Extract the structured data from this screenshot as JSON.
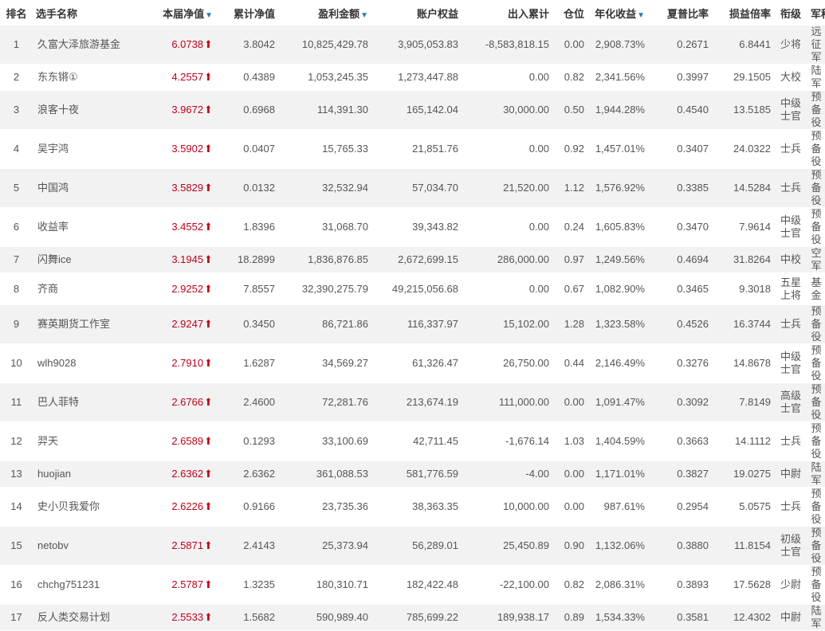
{
  "columns": [
    "排名",
    "选手名称",
    "本届净值",
    "累计净值",
    "盈利金额",
    "账户权益",
    "出入累计",
    "仓位",
    "年化收益",
    "夏普比率",
    "损益倍率",
    "衔级",
    "军种"
  ],
  "sort_icon": "triangle-down-icon",
  "up_icon": "arrow-up-icon",
  "up_color": "#c0001a",
  "rows": [
    {
      "rank": "1",
      "name": "久富大泽旅游基金",
      "nav": "6.0738",
      "cum": "3.8042",
      "profit": "10,825,429.78",
      "equity": "3,905,053.83",
      "flow": "-8,583,818.15",
      "pos": "0.00",
      "annual": "2,908.73%",
      "sharpe": "0.2671",
      "pl": "6.8441",
      "grade": "少将",
      "branch": "远征军",
      "h": 40
    },
    {
      "rank": "2",
      "name": "东东锵①",
      "nav": "4.2557",
      "cum": "0.4389",
      "profit": "1,053,245.35",
      "equity": "1,273,447.88",
      "flow": "0.00",
      "pos": "0.82",
      "annual": "2,341.56%",
      "sharpe": "0.3997",
      "pl": "29.1505",
      "grade": "大校",
      "branch": "陆军",
      "h": 28
    },
    {
      "rank": "3",
      "name": "浪客十夜",
      "nav": "3.9672",
      "cum": "0.6968",
      "profit": "114,391.30",
      "equity": "165,142.04",
      "flow": "30,000.00",
      "pos": "0.50",
      "annual": "1,944.28%",
      "sharpe": "0.4540",
      "pl": "13.5185",
      "grade": "中级士官",
      "branch": "预备役",
      "h": 40
    },
    {
      "rank": "4",
      "name": "吴宇鸿",
      "nav": "3.5902",
      "cum": "0.0407",
      "profit": "15,765.33",
      "equity": "21,851.76",
      "flow": "0.00",
      "pos": "0.92",
      "annual": "1,457.01%",
      "sharpe": "0.3407",
      "pl": "24.0322",
      "grade": "士兵",
      "branch": "预备役",
      "h": 28
    },
    {
      "rank": "5",
      "name": "中国鸿",
      "nav": "3.5829",
      "cum": "0.0132",
      "profit": "32,532.94",
      "equity": "57,034.70",
      "flow": "21,520.00",
      "pos": "1.12",
      "annual": "1,576.92%",
      "sharpe": "0.3385",
      "pl": "14.5284",
      "grade": "士兵",
      "branch": "预备役",
      "h": 28
    },
    {
      "rank": "6",
      "name": "收益率",
      "nav": "3.4552",
      "cum": "1.8396",
      "profit": "31,068.70",
      "equity": "39,343.82",
      "flow": "0.00",
      "pos": "0.24",
      "annual": "1,605.83%",
      "sharpe": "0.3470",
      "pl": "7.9614",
      "grade": "中级士官",
      "branch": "预备役",
      "h": 40
    },
    {
      "rank": "7",
      "name": "闪舞ice",
      "nav": "3.1945",
      "cum": "18.2899",
      "profit": "1,836,876.85",
      "equity": "2,672,699.15",
      "flow": "286,000.00",
      "pos": "0.97",
      "annual": "1,249.56%",
      "sharpe": "0.4694",
      "pl": "31.8264",
      "grade": "中校",
      "branch": "空军",
      "h": 28
    },
    {
      "rank": "8",
      "name": "齐商",
      "nav": "2.9252",
      "cum": "7.8557",
      "profit": "32,390,275.79",
      "equity": "49,215,056.68",
      "flow": "0.00",
      "pos": "0.67",
      "annual": "1,082.90%",
      "sharpe": "0.3465",
      "pl": "9.3018",
      "grade": "五星上将",
      "branch": "基金",
      "h": 40
    },
    {
      "rank": "9",
      "name": "赛英期货工作室",
      "nav": "2.9247",
      "cum": "0.3450",
      "profit": "86,721.86",
      "equity": "116,337.97",
      "flow": "15,102.00",
      "pos": "1.28",
      "annual": "1,323.58%",
      "sharpe": "0.4526",
      "pl": "16.3744",
      "grade": "士兵",
      "branch": "预备役",
      "h": 28
    },
    {
      "rank": "10",
      "name": "wlh9028",
      "nav": "2.7910",
      "cum": "1.6287",
      "profit": "34,569.27",
      "equity": "61,326.47",
      "flow": "26,750.00",
      "pos": "0.44",
      "annual": "2,146.49%",
      "sharpe": "0.3276",
      "pl": "14.8678",
      "grade": "中级士官",
      "branch": "预备役",
      "h": 40
    },
    {
      "rank": "11",
      "name": "巴人菲特",
      "nav": "2.6766",
      "cum": "2.4600",
      "profit": "72,281.76",
      "equity": "213,674.19",
      "flow": "111,000.00",
      "pos": "0.00",
      "annual": "1,091.47%",
      "sharpe": "0.3092",
      "pl": "7.8149",
      "grade": "高级士官",
      "branch": "预备役",
      "h": 40
    },
    {
      "rank": "12",
      "name": "羿天",
      "nav": "2.6589",
      "cum": "0.1293",
      "profit": "33,100.69",
      "equity": "42,711.45",
      "flow": "-1,676.14",
      "pos": "1.03",
      "annual": "1,404.59%",
      "sharpe": "0.3663",
      "pl": "14.1112",
      "grade": "士兵",
      "branch": "预备役",
      "h": 28
    },
    {
      "rank": "13",
      "name": "huojian",
      "nav": "2.6362",
      "cum": "2.6362",
      "profit": "361,088.53",
      "equity": "581,776.59",
      "flow": "-4.00",
      "pos": "0.00",
      "annual": "1,171.01%",
      "sharpe": "0.3827",
      "pl": "19.0275",
      "grade": "中尉",
      "branch": "陆军",
      "h": 28
    },
    {
      "rank": "14",
      "name": "史小贝我爱你",
      "nav": "2.6226",
      "cum": "0.9166",
      "profit": "23,735.36",
      "equity": "38,363.35",
      "flow": "10,000.00",
      "pos": "0.00",
      "annual": "987.61%",
      "sharpe": "0.2954",
      "pl": "5.0575",
      "grade": "士兵",
      "branch": "预备役",
      "h": 28
    },
    {
      "rank": "15",
      "name": "netobv",
      "nav": "2.5871",
      "cum": "2.4143",
      "profit": "25,373.94",
      "equity": "56,289.01",
      "flow": "25,450.89",
      "pos": "0.90",
      "annual": "1,132.06%",
      "sharpe": "0.3880",
      "pl": "11.8154",
      "grade": "初级士官",
      "branch": "预备役",
      "h": 40
    },
    {
      "rank": "16",
      "name": "chchg751231",
      "nav": "2.5787",
      "cum": "1.3235",
      "profit": "180,310.71",
      "equity": "182,422.48",
      "flow": "-22,100.00",
      "pos": "0.82",
      "annual": "2,086.31%",
      "sharpe": "0.3893",
      "pl": "17.5628",
      "grade": "少尉",
      "branch": "预备役",
      "h": 28
    },
    {
      "rank": "17",
      "name": "反人类交易计划",
      "nav": "2.5533",
      "cum": "1.5682",
      "profit": "590,989.40",
      "equity": "785,699.22",
      "flow": "189,938.17",
      "pos": "0.89",
      "annual": "1,534.33%",
      "sharpe": "0.3581",
      "pl": "12.4302",
      "grade": "中尉",
      "branch": "陆军",
      "h": 28
    }
  ]
}
